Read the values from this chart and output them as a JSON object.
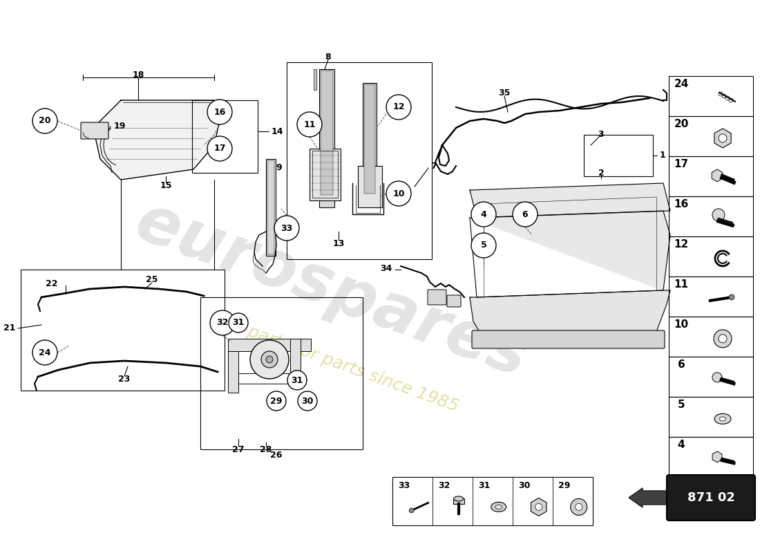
{
  "bg_color": "#ffffff",
  "page_number": "871 02",
  "watermark_text": "eurospares",
  "watermark_subtext": "a parts for parts since 1985",
  "right_column_nums": [
    24,
    20,
    17,
    16,
    12,
    11,
    10,
    6,
    5,
    4
  ],
  "bottom_row_nums": [
    33,
    32,
    31,
    30,
    29
  ]
}
